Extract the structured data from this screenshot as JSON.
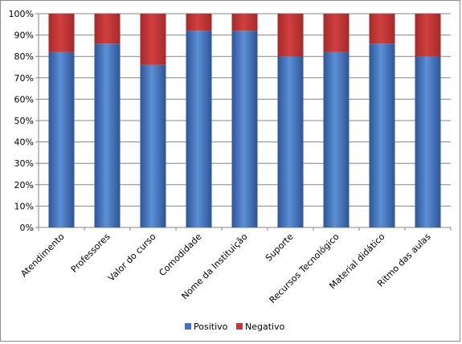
{
  "chart_data": {
    "type": "bar",
    "stacked": true,
    "percent": true,
    "categories": [
      "Atendimento",
      "Professores",
      "Valor do curso",
      "Comodidade",
      "Nome da Instituição",
      "Suporte",
      "Recursos Tecnológico",
      "Material didático",
      "Ritmo das aulas"
    ],
    "series": [
      {
        "name": "Positivo",
        "color": "#4472c4",
        "values": [
          82,
          86,
          76,
          92,
          92,
          80,
          82,
          86,
          80
        ]
      },
      {
        "name": "Negativo",
        "color": "#c0393b",
        "values": [
          18,
          14,
          24,
          8,
          8,
          20,
          18,
          14,
          20
        ]
      }
    ],
    "yticks": [
      "0%",
      "10%",
      "20%",
      "30%",
      "40%",
      "50%",
      "60%",
      "70%",
      "80%",
      "90%",
      "100%"
    ],
    "ylim": [
      0,
      100
    ],
    "grid": true,
    "legend": "bottom",
    "title": "",
    "xlabel": "",
    "ylabel": ""
  }
}
